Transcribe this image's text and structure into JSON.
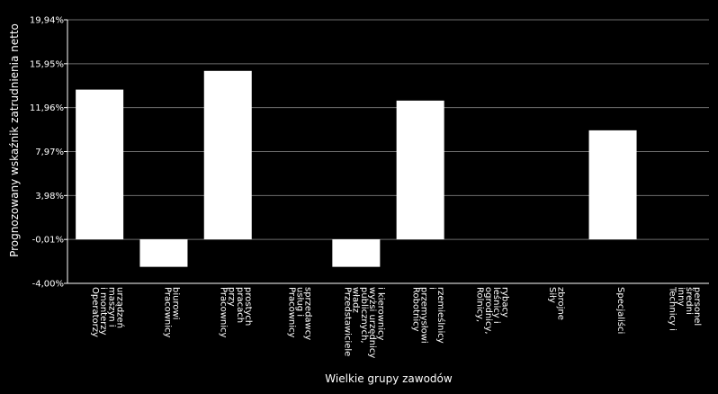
{
  "chart_data": {
    "type": "bar",
    "xlabel": "Wielkie grupy zawodów",
    "ylabel": "Prognozowany wskaźnik zatrudnienia netto",
    "ylim": [
      -4.0,
      19.94
    ],
    "yticks": [
      "19,94%",
      "15,95%",
      "11,96%",
      "7,97%",
      "3,98%",
      "-0,01%",
      "-4,00%"
    ],
    "grid": true,
    "background": "#000000",
    "bar_color": "#ffffff",
    "categories": [
      [
        "Operatorzy",
        "i monterzy",
        "maszyn i",
        "urządzeń"
      ],
      [
        "Pracownicy",
        "biurowi"
      ],
      [
        "Pracownicy",
        "przy",
        "pracach",
        "prostych"
      ],
      [
        "Pracownicy",
        "usług i",
        "sprzedawcy"
      ],
      [
        "Przedstawiciele",
        "władz",
        "publicznych,",
        "wyżsi urzędnicy",
        "i kierownicy"
      ],
      [
        "Robotnicy",
        "przemysłowi",
        "i",
        "rzemieślnicy"
      ],
      [
        "Rolnicy,",
        "ogrodnicy,",
        "leśnicy i",
        "rybacy"
      ],
      [
        "Siły",
        "zbrojne"
      ],
      [
        "Specjaliści"
      ],
      [
        "Technicy i",
        "inny",
        "średni",
        "personel"
      ]
    ],
    "values": [
      13.6,
      -2.5,
      15.3,
      0,
      -2.5,
      12.6,
      0,
      0,
      9.9,
      0
    ]
  }
}
